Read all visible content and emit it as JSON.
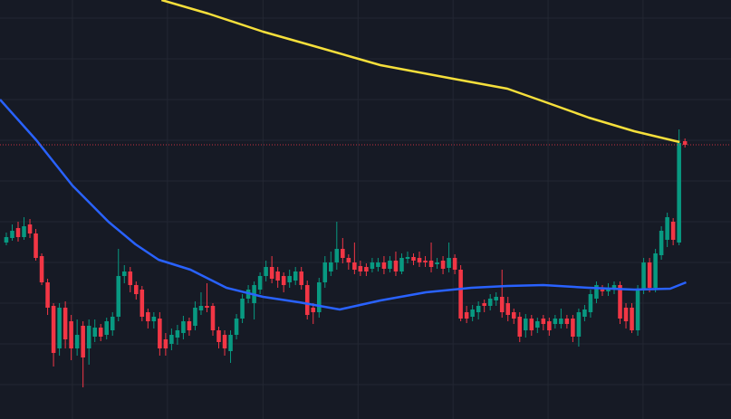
{
  "chart_data": {
    "type": "candlestick",
    "background": "#161a25",
    "grid_color": "#232733",
    "up_color": "#089981",
    "down_color": "#f23645",
    "grid": true,
    "xlim": [
      -1.07,
      122.8
    ],
    "ylim": [
      0,
      463
    ],
    "xticks": [
      11.2,
      27.3,
      43.5,
      59.6,
      75.7,
      91.8,
      107.9
    ],
    "yticks": [
      38,
      83,
      128,
      173,
      218,
      263,
      308,
      353,
      398,
      443
    ],
    "x": [
      0,
      1,
      2,
      3,
      4,
      5,
      6,
      7,
      8,
      9,
      10,
      11,
      12,
      13,
      14,
      15,
      16,
      17,
      18,
      19,
      20,
      21,
      22,
      23,
      24,
      25,
      26,
      27,
      28,
      29,
      30,
      31,
      32,
      33,
      34,
      35,
      36,
      37,
      38,
      39,
      40,
      41,
      42,
      43,
      44,
      45,
      46,
      47,
      48,
      49,
      50,
      51,
      52,
      53,
      54,
      55,
      56,
      57,
      58,
      59,
      60,
      61,
      62,
      63,
      64,
      65,
      66,
      67,
      68,
      69,
      70,
      71,
      72,
      73,
      74,
      75,
      76,
      77,
      78,
      79,
      80,
      81,
      82,
      83,
      84,
      85,
      86,
      87,
      88,
      89,
      90,
      91,
      92,
      93,
      94,
      95,
      96,
      97,
      98,
      99,
      100,
      101,
      102,
      103,
      104,
      105,
      106,
      107,
      108,
      109,
      110,
      111,
      112,
      113,
      114,
      115
    ],
    "open": [
      195,
      200,
      211,
      201,
      215,
      205,
      180,
      151,
      125,
      78,
      123,
      108,
      78,
      103,
      78,
      91,
      101,
      93,
      98,
      113,
      158,
      163,
      148,
      143,
      118,
      108,
      111,
      88,
      83,
      90,
      95,
      108,
      103,
      120,
      125,
      125,
      98,
      93,
      75,
      93,
      111,
      133,
      128,
      143,
      158,
      168,
      163,
      158,
      151,
      153,
      163,
      148,
      123,
      118,
      151,
      163,
      173,
      188,
      178,
      173,
      169,
      168,
      166,
      168,
      173,
      166,
      175,
      163,
      177,
      179,
      178,
      175,
      175,
      171,
      175,
      167,
      178,
      165,
      118,
      113,
      118,
      128,
      125,
      131,
      135,
      128,
      118,
      113,
      98,
      111,
      101,
      111,
      108,
      105,
      105,
      111,
      111,
      91,
      113,
      118,
      133,
      143,
      141,
      143,
      148,
      123,
      123,
      98,
      143,
      173,
      145,
      181,
      198,
      218,
      195,
      307
    ],
    "high": [
      206,
      215,
      218,
      223,
      221,
      210,
      183,
      155,
      128,
      128,
      130,
      115,
      110,
      108,
      110,
      110,
      105,
      112,
      118,
      188,
      170,
      168,
      152,
      147,
      122,
      118,
      118,
      95,
      100,
      104,
      114,
      112,
      130,
      140,
      150,
      128,
      102,
      98,
      98,
      116,
      138,
      148,
      152,
      162,
      175,
      180,
      168,
      162,
      165,
      168,
      168,
      153,
      128,
      156,
      180,
      185,
      218,
      200,
      182,
      195,
      175,
      172,
      178,
      178,
      180,
      180,
      185,
      183,
      185,
      183,
      185,
      180,
      195,
      178,
      180,
      195,
      182,
      170,
      125,
      126,
      130,
      132,
      138,
      140,
      165,
      135,
      122,
      118,
      116,
      115,
      112,
      115,
      112,
      115,
      122,
      115,
      115,
      122,
      126,
      143,
      152,
      148,
      150,
      152,
      152,
      128,
      128,
      148,
      178,
      178,
      188,
      213,
      228,
      222,
      320,
      310
    ],
    "low": [
      192,
      197,
      196,
      198,
      200,
      175,
      148,
      115,
      58,
      70,
      78,
      65,
      70,
      35,
      60,
      85,
      86,
      88,
      92,
      108,
      150,
      140,
      132,
      108,
      100,
      100,
      70,
      70,
      76,
      82,
      88,
      92,
      98,
      115,
      118,
      92,
      78,
      70,
      62,
      88,
      106,
      128,
      110,
      138,
      152,
      150,
      145,
      140,
      145,
      148,
      143,
      110,
      105,
      112,
      145,
      158,
      165,
      172,
      165,
      160,
      158,
      158,
      162,
      163,
      160,
      162,
      158,
      160,
      172,
      170,
      168,
      168,
      162,
      166,
      160,
      162,
      160,
      108,
      106,
      108,
      110,
      118,
      120,
      125,
      112,
      108,
      105,
      85,
      90,
      92,
      95,
      98,
      92,
      100,
      100,
      100,
      85,
      80,
      108,
      112,
      128,
      136,
      136,
      138,
      105,
      100,
      95,
      92,
      138,
      140,
      140,
      176,
      190,
      192,
      192,
      300
    ],
    "close": [
      201,
      208,
      201,
      213,
      205,
      178,
      151,
      123,
      73,
      123,
      88,
      78,
      93,
      68,
      103,
      101,
      91,
      108,
      113,
      158,
      163,
      148,
      138,
      113,
      108,
      113,
      78,
      78,
      93,
      98,
      108,
      98,
      123,
      125,
      123,
      98,
      85,
      78,
      93,
      111,
      133,
      143,
      148,
      158,
      168,
      155,
      153,
      148,
      158,
      163,
      148,
      115,
      118,
      151,
      173,
      173,
      188,
      178,
      173,
      165,
      163,
      163,
      173,
      173,
      166,
      175,
      163,
      178,
      179,
      175,
      173,
      173,
      168,
      173,
      166,
      178,
      165,
      111,
      111,
      121,
      125,
      125,
      133,
      135,
      118,
      115,
      111,
      91,
      111,
      98,
      108,
      105,
      98,
      111,
      111,
      105,
      91,
      118,
      121,
      138,
      148,
      141,
      145,
      148,
      111,
      108,
      98,
      143,
      173,
      145,
      183,
      208,
      223,
      198,
      305,
      303
    ],
    "overlays": [
      {
        "color": "#f5df3b",
        "x": [
          26.3,
          34.2,
          43.5,
          52.7,
          63.4,
          75.7,
          84.9,
          91.0,
          98.7,
          106.4,
          114.1
        ],
        "values": [
          463,
          448,
          428,
          411,
          391,
          376,
          365,
          351,
          333,
          318,
          306
        ]
      },
      {
        "color": "#2962ff",
        "x": [
          -1.07,
          5.1,
          11.2,
          17.3,
          21.9,
          25.8,
          31.2,
          37.3,
          43.5,
          49.6,
          56.5,
          63.4,
          71.1,
          78.8,
          84.9,
          91.0,
          98.7,
          106.4,
          112.5,
          115.2
        ],
        "values": [
          353,
          308,
          258,
          218,
          193,
          176,
          165,
          145,
          135,
          129,
          121,
          131,
          140,
          145,
          147,
          148,
          145,
          143,
          144,
          151
        ]
      }
    ],
    "price_line": {
      "value": 303,
      "color": "#f23645"
    }
  }
}
